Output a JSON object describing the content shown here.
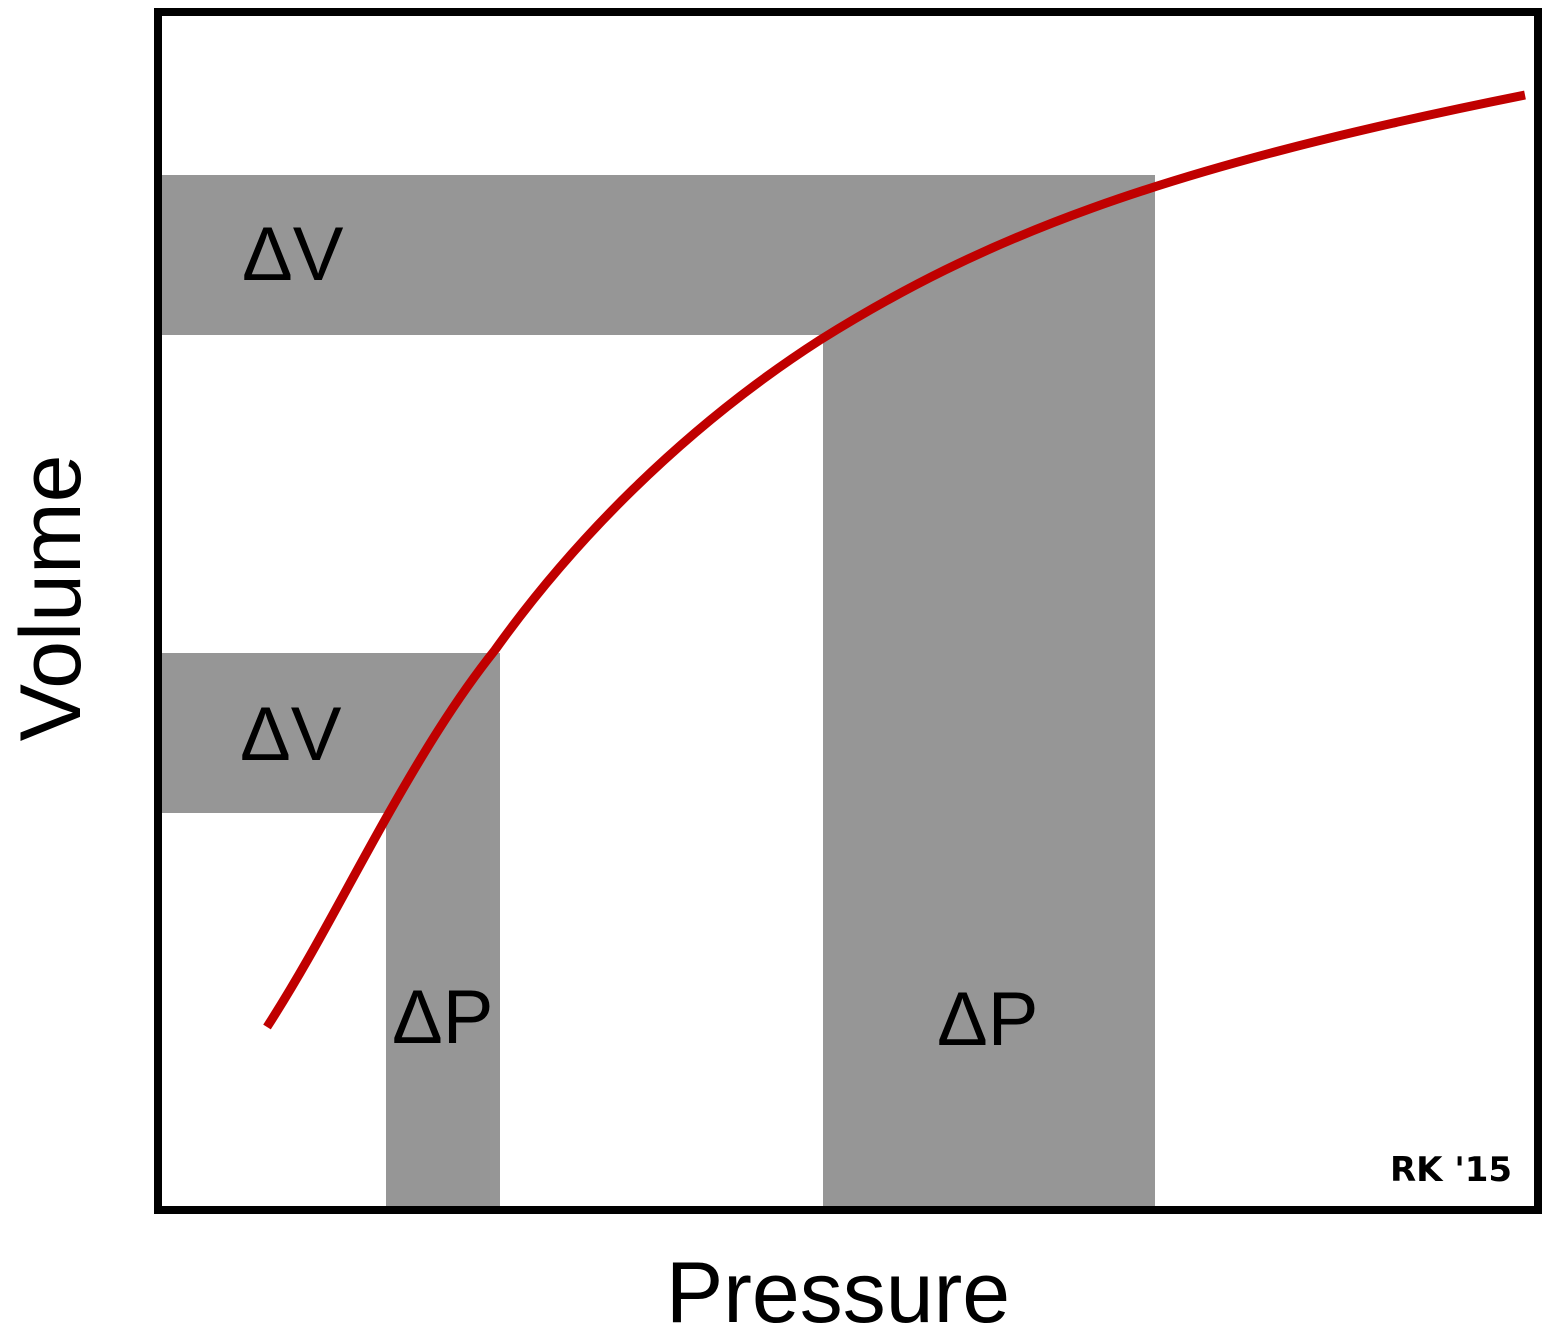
{
  "x_axis_label": "Pressure",
  "y_axis_label": "Volume",
  "signature": "RK '15",
  "bands": {
    "low_volume_label": "ΔV",
    "high_volume_label": "ΔV",
    "low_pressure_label": "ΔP",
    "high_pressure_label": "ΔP"
  },
  "colors": {
    "curve": "#c00000",
    "band": "#969696",
    "frame": "#000000",
    "text": "#000000"
  }
}
